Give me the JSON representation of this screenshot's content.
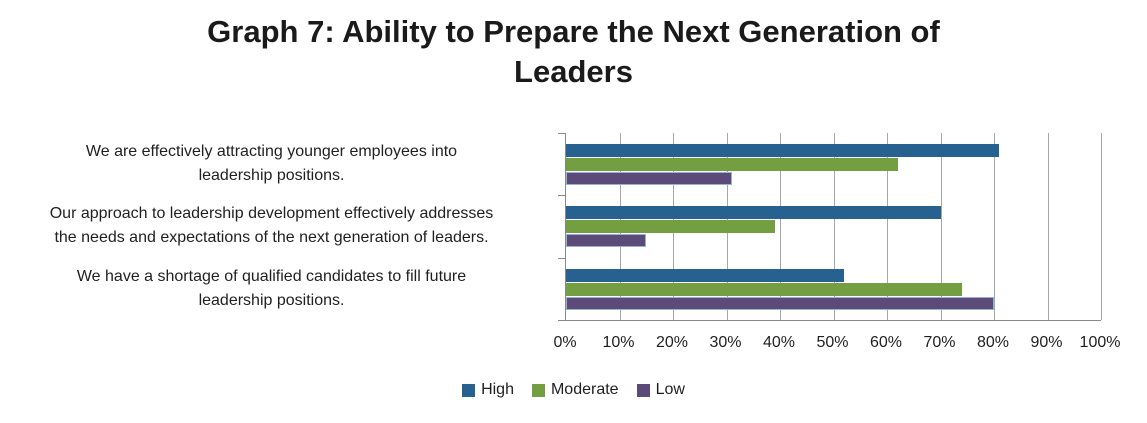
{
  "header": {
    "title_lines": [
      "Graph 7: Ability to Prepare the Next Generation of",
      "Leaders"
    ]
  },
  "chart_data": {
    "type": "bar",
    "orientation": "horizontal",
    "title": "Graph 7: Ability to Prepare the Next Generation of Leaders",
    "categories": [
      {
        "label": "We are effectively attracting younger employees into leadership positions.",
        "lines": [
          "We are effectively attracting younger employees into",
          "leadership positions."
        ]
      },
      {
        "label": "Our approach to leadership development effectively addresses the needs and expectations of the next generation of leaders.",
        "lines": [
          "Our approach to leadership development effectively addresses",
          "the needs and expectations of the next generation of leaders."
        ]
      },
      {
        "label": "We have a shortage of qualified candidates to fill future leadership positions.",
        "lines": [
          "We have a shortage of qualified candidates to fill future",
          "leadership positions."
        ]
      }
    ],
    "series": [
      {
        "name": "High",
        "color": "#26618F",
        "values": [
          81,
          70,
          52
        ]
      },
      {
        "name": "Moderate",
        "color": "#739E41",
        "values": [
          62,
          39,
          74
        ]
      },
      {
        "name": "Low",
        "color": "#5C4A78",
        "border_color": "#95B3D7",
        "values": [
          31,
          15,
          80
        ]
      }
    ],
    "x_ticks": [
      "0%",
      "10%",
      "20%",
      "30%",
      "40%",
      "50%",
      "60%",
      "70%",
      "80%",
      "90%",
      "100%"
    ],
    "xlim": [
      0,
      100
    ],
    "grid": "vertical",
    "legend_position": "bottom",
    "colors": {
      "gridline": "#A6A6A6",
      "axis": "#898989",
      "title_text": "#1A1A1A",
      "label_text": "#1F1F1F"
    }
  }
}
